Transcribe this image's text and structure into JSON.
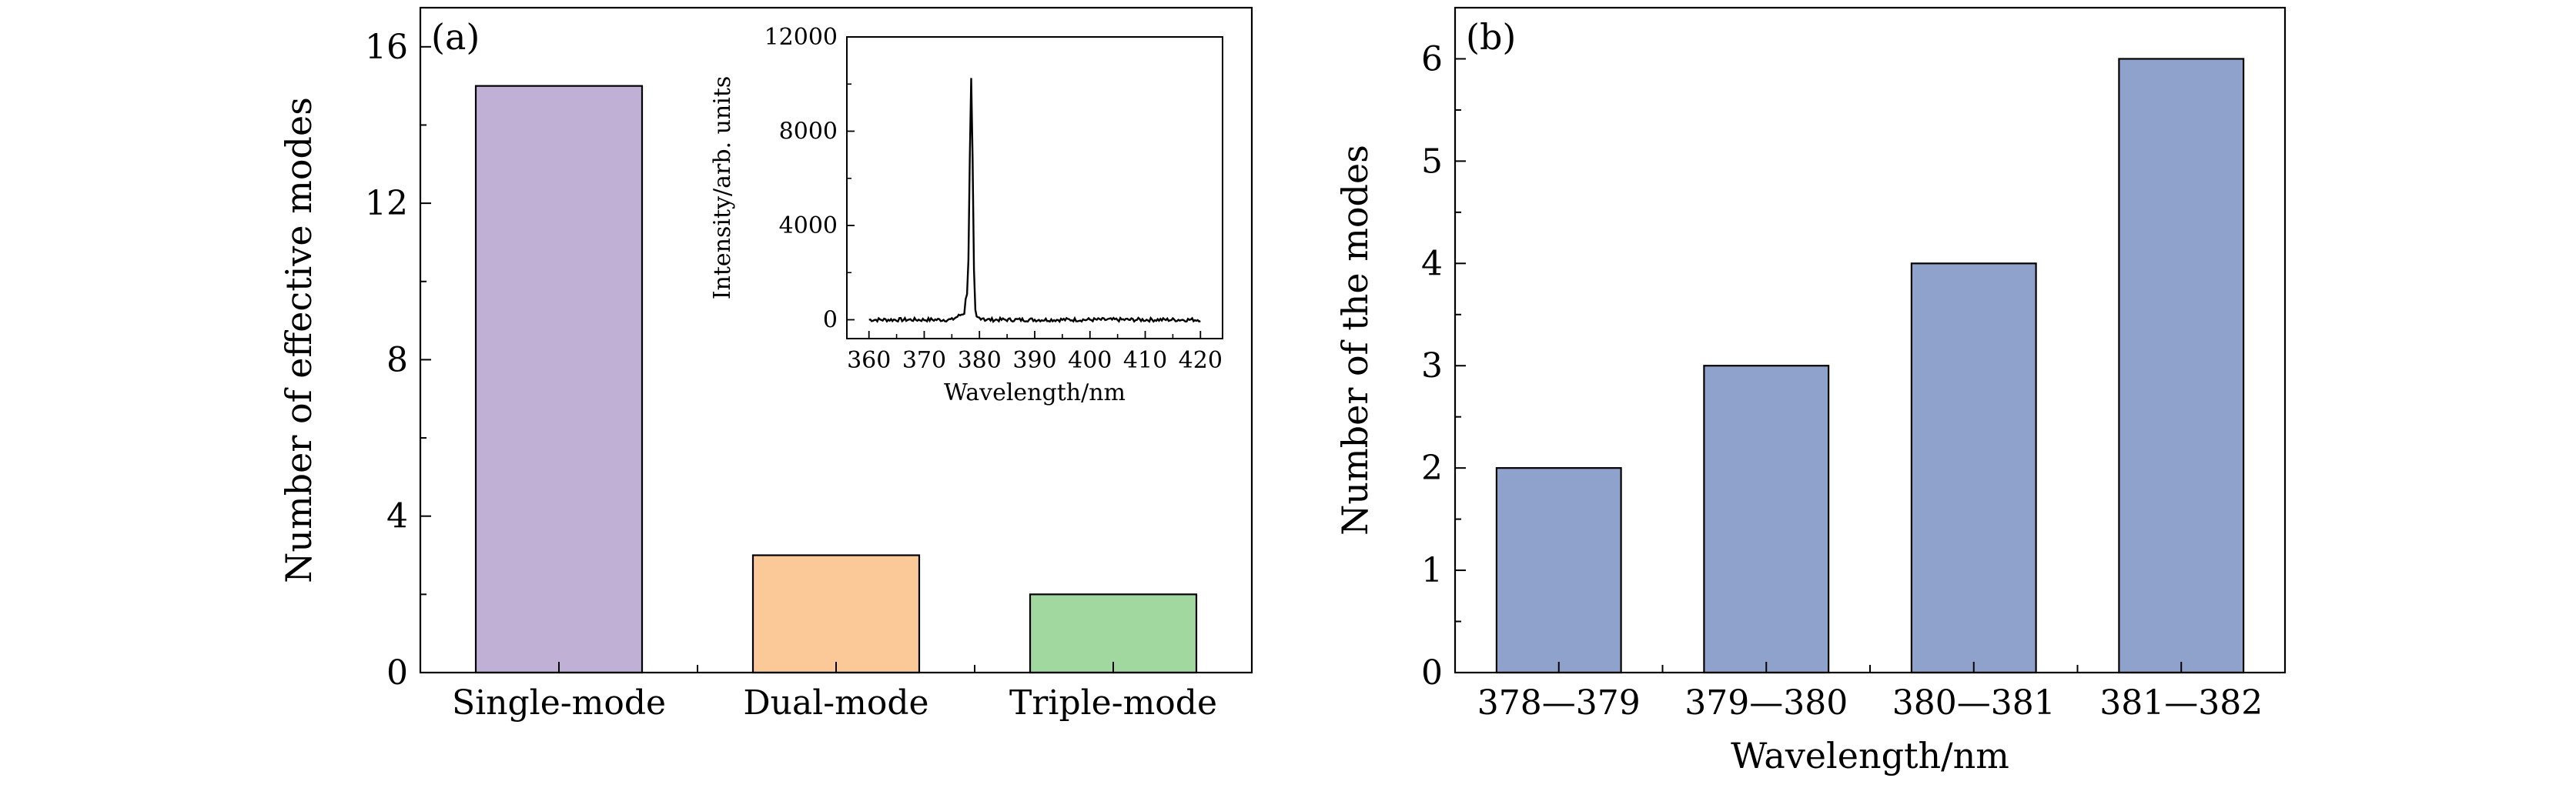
{
  "chart_data": [
    {
      "panel": "(a)",
      "type": "bar",
      "categories": [
        "Single-mode",
        "Dual-mode",
        "Triple-mode"
      ],
      "values": [
        15,
        3,
        2
      ],
      "colors": [
        "#c0b0d6",
        "#fbc898",
        "#a0d8a0"
      ],
      "ylabel": "Number of effective modes",
      "ylim": [
        0,
        17
      ],
      "yticks": [
        0,
        4,
        8,
        12,
        16
      ],
      "inset": {
        "type": "line",
        "xlabel": "Wavelength/nm",
        "ylabel": "Intensity/arb. units",
        "xlim": [
          356,
          424
        ],
        "ylim": [
          -800,
          12000
        ],
        "xticks": [
          360,
          370,
          380,
          390,
          400,
          410,
          420
        ],
        "yticks": [
          0,
          4000,
          8000,
          12000
        ],
        "peak": {
          "x": 378.5,
          "y": 10200
        }
      }
    },
    {
      "panel": "(b)",
      "type": "bar",
      "categories": [
        "378—379",
        "379—380",
        "380—381",
        "381—382"
      ],
      "values": [
        2,
        3,
        4,
        6
      ],
      "colors": [
        "#8fa2cc",
        "#8fa2cc",
        "#8fa2cc",
        "#8fa2cc"
      ],
      "xlabel": "Wavelength/nm",
      "ylabel": "Number of the modes",
      "ylim": [
        0,
        6.5
      ],
      "yticks": [
        0,
        1,
        2,
        3,
        4,
        5,
        6
      ]
    }
  ]
}
